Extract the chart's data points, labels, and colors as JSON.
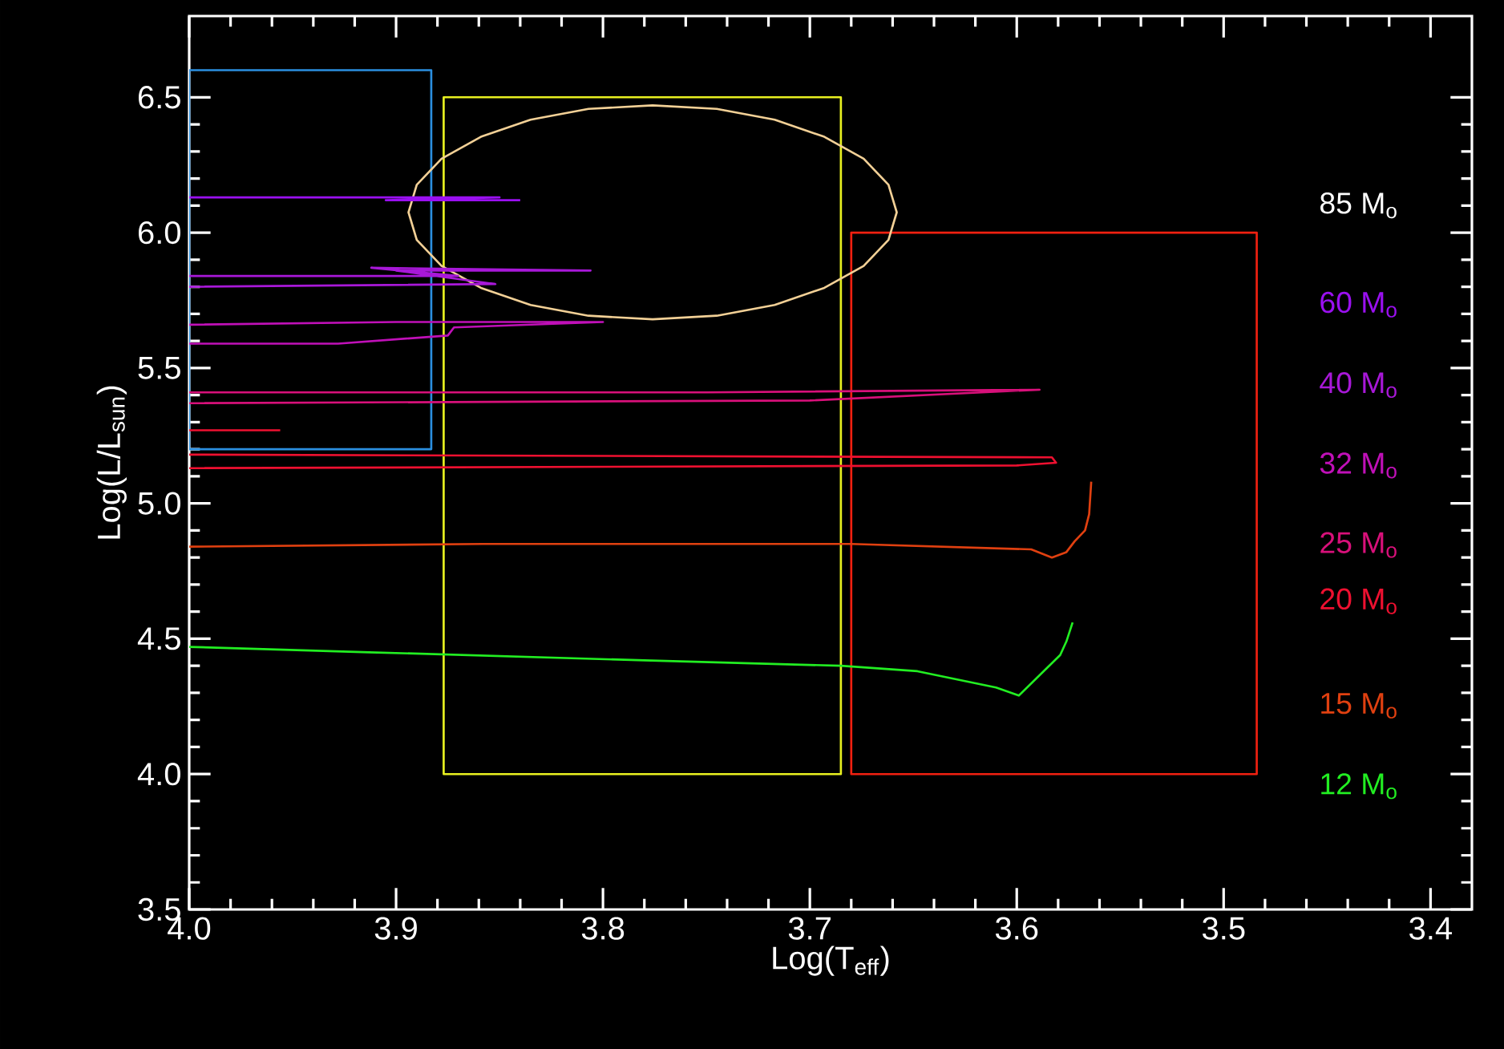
{
  "chart_data": {
    "type": "line",
    "xlabel": "Log(T$_{eff}$)",
    "ylabel": "Log(L/L$_{sun}$)",
    "xlim": [
      4.0,
      3.38
    ],
    "ylim": [
      3.5,
      6.8
    ],
    "xticks": [
      {
        "value": 4.0,
        "label": "4.0"
      },
      3.9,
      3.8,
      3.7,
      3.6,
      3.5,
      3.4
    ],
    "yticks": [
      3.5,
      {
        "value": 4.0,
        "label": "4.0"
      },
      4.5,
      {
        "value": 5.0,
        "label": "5.0"
      },
      5.5,
      {
        "value": 6.0,
        "label": "6.0"
      },
      6.5
    ],
    "grid": false,
    "legend": false,
    "marker": "none",
    "line_style": "solid",
    "annotations": [
      "85 M$_{o}$"
    ],
    "series": [
      {
        "color": "#2b8fe0",
        "x": [
          3.94,
          3.883,
          3.883,
          4.0,
          4.0,
          3.93
        ],
        "values": [
          6.6,
          6.6,
          5.2,
          5.2,
          6.6,
          6.6
        ]
      },
      {
        "color": "#e8f020",
        "x": [
          3.78,
          3.685,
          3.685,
          3.877,
          3.877,
          3.77
        ],
        "values": [
          6.5,
          6.5,
          4.0,
          4.0,
          6.5,
          6.5
        ]
      },
      {
        "color": "#f02010",
        "x": [
          3.58,
          3.484,
          3.484,
          3.68,
          3.68,
          3.57
        ],
        "values": [
          6.0,
          6.0,
          4.0,
          4.0,
          6.0,
          6.0
        ]
      },
      {
        "color": "#f2d096",
        "x": [
          3.658,
          3.662,
          3.674,
          3.693,
          3.717,
          3.745,
          3.776,
          3.807,
          3.835,
          3.859,
          3.878,
          3.89,
          3.894,
          3.89,
          3.878,
          3.859,
          3.835,
          3.807,
          3.776,
          3.745,
          3.717,
          3.693,
          3.674,
          3.662,
          3.658,
          3.662
        ],
        "values": [
          6.075,
          6.177,
          6.273,
          6.354,
          6.417,
          6.457,
          6.47,
          6.457,
          6.417,
          6.354,
          6.273,
          6.177,
          6.075,
          5.973,
          5.877,
          5.796,
          5.733,
          5.693,
          5.68,
          5.693,
          5.733,
          5.796,
          5.877,
          5.973,
          6.075,
          6.177
        ]
      },
      {
        "name": "60 M$_{o}$",
        "color": "#9a10f0",
        "x": [
          4.0,
          3.85,
          3.905,
          3.84
        ],
        "values": [
          6.13,
          6.13,
          6.12,
          6.12
        ]
      },
      {
        "name": "40 M$_{o}$",
        "color": "#a818d8",
        "x": [
          4.0,
          3.87,
          3.912,
          3.806,
          3.9,
          3.852,
          4.0
        ],
        "values": [
          5.84,
          5.84,
          5.87,
          5.86,
          5.86,
          5.81,
          5.8
        ]
      },
      {
        "name": "32 M$_{o}$",
        "color": "#c010b8",
        "x": [
          4.0,
          3.928,
          3.875,
          3.872,
          3.8,
          3.9,
          4.0
        ],
        "values": [
          5.59,
          5.59,
          5.62,
          5.65,
          5.67,
          5.67,
          5.66
        ]
      },
      {
        "name": "25 M$_{o}$",
        "color": "#d8107a",
        "x": [
          4.0,
          3.7,
          3.589,
          3.75,
          4.0
        ],
        "values": [
          5.37,
          5.38,
          5.42,
          5.41,
          5.41
        ]
      },
      {
        "color": "#ee1030",
        "x": [
          3.956,
          4.0
        ],
        "values": [
          5.27,
          5.27
        ]
      },
      {
        "name": "20 M$_{o}$",
        "color": "#ee1030",
        "x": [
          4.0,
          3.583,
          3.581,
          3.6,
          4.0
        ],
        "values": [
          5.18,
          5.17,
          5.15,
          5.14,
          5.13
        ]
      },
      {
        "name": "15 M$_{o}$",
        "color": "#e04010",
        "x": [
          4.0,
          3.858,
          3.68,
          3.593,
          3.583,
          3.576,
          3.572,
          3.567,
          3.565,
          3.564
        ],
        "values": [
          4.84,
          4.85,
          4.85,
          4.83,
          4.8,
          4.82,
          4.86,
          4.9,
          4.96,
          5.08
        ]
      },
      {
        "name": "12 M$_{o}$",
        "color": "#22ee22",
        "x": [
          4.0,
          3.913,
          3.78,
          3.685,
          3.648,
          3.61,
          3.599,
          3.579,
          3.576,
          3.573
        ],
        "values": [
          4.47,
          4.45,
          4.42,
          4.4,
          4.38,
          4.32,
          4.29,
          4.44,
          4.49,
          4.56
        ]
      }
    ]
  }
}
